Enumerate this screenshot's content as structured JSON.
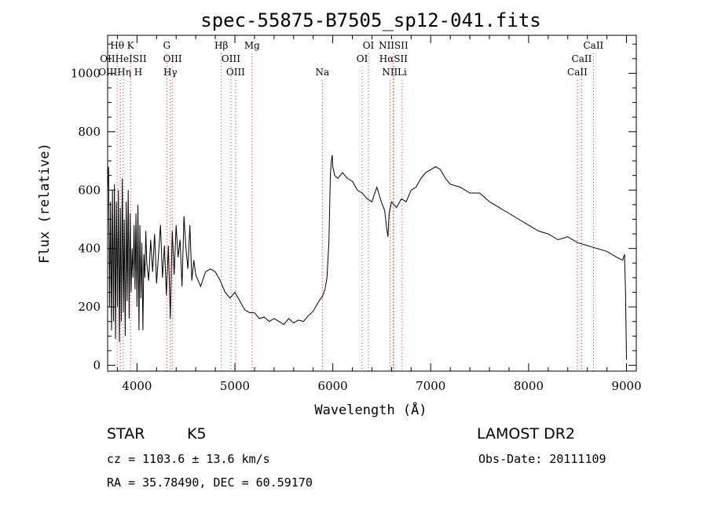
{
  "chart_data": {
    "type": "line",
    "title": "spec-55875-B7505_sp12-041.fits",
    "xlabel": "Wavelength (Å)",
    "ylabel": "Flux (relative)",
    "xlim": [
      3700,
      9100
    ],
    "ylim": [
      -20,
      1130
    ],
    "x_ticks": [
      "4000",
      "5000",
      "6000",
      "7000",
      "8000",
      "9000"
    ],
    "x_tick_values": [
      4000,
      5000,
      6000,
      7000,
      8000,
      9000
    ],
    "y_ticks": [
      "0",
      "200",
      "400",
      "600",
      "800",
      "1000"
    ],
    "y_tick_values": [
      0,
      200,
      400,
      600,
      800,
      1000
    ],
    "grid": false,
    "series": [
      {
        "x": [
          3700,
          3710,
          3720,
          3730,
          3740,
          3750,
          3760,
          3770,
          3780,
          3790,
          3800,
          3810,
          3820,
          3830,
          3840,
          3850,
          3860,
          3870,
          3880,
          3890,
          3900,
          3910,
          3920,
          3930,
          3940,
          3950,
          3960,
          3970,
          3980,
          3990,
          4000,
          4010,
          4020,
          4030,
          4040,
          4050,
          4060,
          4070,
          4080,
          4090,
          4100,
          4120,
          4140,
          4160,
          4180,
          4200,
          4220,
          4240,
          4260,
          4280,
          4300,
          4320,
          4340,
          4360,
          4380,
          4400,
          4420,
          4440,
          4460,
          4480,
          4500,
          4520,
          4540,
          4560,
          4580,
          4600,
          4650,
          4700,
          4750,
          4800,
          4850,
          4900,
          4950,
          5000,
          5050,
          5100,
          5150,
          5200,
          5250,
          5300,
          5350,
          5400,
          5450,
          5500,
          5550,
          5600,
          5650,
          5700,
          5750,
          5800,
          5850,
          5900,
          5920,
          5940,
          5960,
          5975,
          5985,
          5995,
          6000,
          6020,
          6050,
          6100,
          6150,
          6200,
          6250,
          6300,
          6350,
          6400,
          6450,
          6500,
          6530,
          6550,
          6563,
          6575,
          6600,
          6650,
          6700,
          6750,
          6800,
          6850,
          6900,
          6950,
          7000,
          7050,
          7100,
          7150,
          7200,
          7300,
          7400,
          7500,
          7600,
          7700,
          7800,
          7900,
          8000,
          8100,
          8200,
          8300,
          8400,
          8500,
          8600,
          8700,
          8800,
          8900,
          8960,
          8980,
          8990,
          9000
        ],
        "values": [
          600,
          680,
          200,
          560,
          120,
          600,
          150,
          620,
          90,
          560,
          200,
          600,
          80,
          540,
          150,
          640,
          180,
          500,
          100,
          560,
          220,
          600,
          160,
          520,
          250,
          400,
          300,
          480,
          260,
          520,
          200,
          550,
          120,
          480,
          230,
          420,
          120,
          380,
          300,
          460,
          350,
          290,
          430,
          320,
          450,
          280,
          380,
          480,
          300,
          410,
          240,
          410,
          160,
          460,
          310,
          480,
          370,
          430,
          270,
          510,
          400,
          330,
          480,
          290,
          360,
          310,
          270,
          320,
          330,
          320,
          290,
          250,
          230,
          250,
          220,
          190,
          180,
          180,
          160,
          165,
          150,
          160,
          150,
          140,
          160,
          145,
          155,
          150,
          170,
          185,
          215,
          240,
          260,
          300,
          420,
          650,
          700,
          720,
          680,
          650,
          640,
          660,
          640,
          630,
          600,
          590,
          570,
          560,
          610,
          555,
          530,
          470,
          440,
          520,
          560,
          540,
          570,
          560,
          600,
          610,
          640,
          660,
          670,
          680,
          670,
          640,
          620,
          610,
          590,
          590,
          560,
          540,
          520,
          500,
          480,
          460,
          450,
          430,
          440,
          420,
          410,
          400,
          390,
          370,
          360,
          380,
          250,
          20
        ]
      }
    ],
    "spectral_lines": [
      {
        "label": "Hθ",
        "x": 3798,
        "row": 1
      },
      {
        "label": "K",
        "x": 3934,
        "row": 1
      },
      {
        "label": "G",
        "x": 4304,
        "row": 1
      },
      {
        "label": "Hβ",
        "x": 4861,
        "row": 1
      },
      {
        "label": "Mg",
        "x": 5175,
        "row": 1
      },
      {
        "label": "OI",
        "x": 6364,
        "row": 1
      },
      {
        "label": "NIISII",
        "x": 6620,
        "row": 1
      },
      {
        "label": "CaII",
        "x": 8662,
        "row": 1
      },
      {
        "label": "OIIHeISII",
        "x": 3860,
        "row": 2
      },
      {
        "label": "OIII",
        "x": 4363,
        "row": 2
      },
      {
        "label": "OIII",
        "x": 4959,
        "row": 2
      },
      {
        "label": "OI",
        "x": 6300,
        "row": 2
      },
      {
        "label": "HαSII",
        "x": 6620,
        "row": 2
      },
      {
        "label": "CaII",
        "x": 8542,
        "row": 2
      },
      {
        "label": "OIIIHη H",
        "x": 3830,
        "row": 3
      },
      {
        "label": "Hγ",
        "x": 4340,
        "row": 3
      },
      {
        "label": "OIII",
        "x": 5007,
        "row": 3
      },
      {
        "label": "Na",
        "x": 5893,
        "row": 3
      },
      {
        "label": "NII",
        "x": 6583,
        "row": 3
      },
      {
        "label": "Li",
        "x": 6708,
        "row": 3
      },
      {
        "label": "CaII",
        "x": 8498,
        "row": 3
      }
    ]
  },
  "info": {
    "object_class": "STAR",
    "subclass": "K5",
    "survey": "LAMOST DR2",
    "cz": "cz = 1103.6 ± 13.6 km/s",
    "obs_date": "Obs-Date: 20111109",
    "coords": "RA =  35.78490, DEC =  60.59170"
  },
  "colors": {
    "spectrum": "#000000",
    "line_markers": "#cc3333"
  }
}
